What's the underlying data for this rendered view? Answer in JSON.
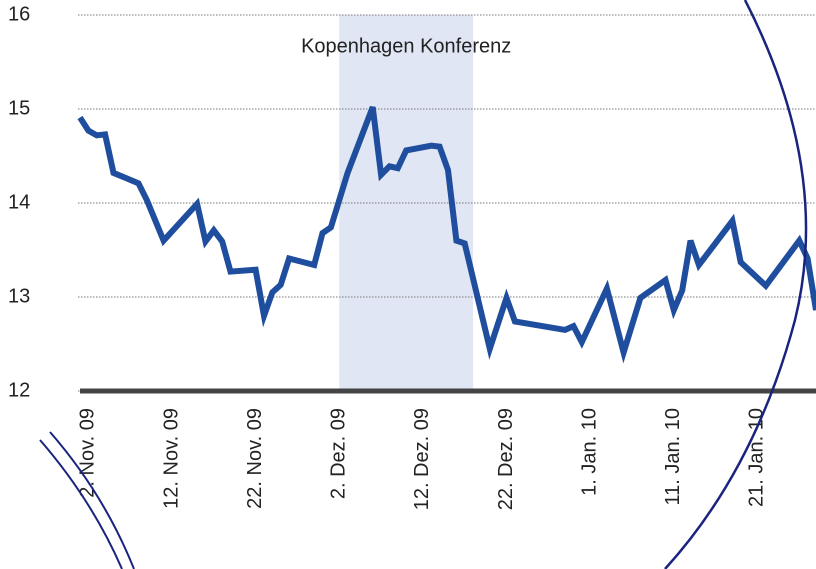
{
  "chart_data": {
    "type": "line",
    "x": [
      "2009-11-01",
      "2009-11-02",
      "2009-11-03",
      "2009-11-04",
      "2009-11-05",
      "2009-11-08",
      "2009-11-09",
      "2009-11-11",
      "2009-11-15",
      "2009-11-16",
      "2009-11-17",
      "2009-11-18",
      "2009-11-19",
      "2009-11-22",
      "2009-11-23",
      "2009-11-24",
      "2009-11-25",
      "2009-11-26",
      "2009-11-29",
      "2009-11-30",
      "2009-12-01",
      "2009-12-03",
      "2009-12-06",
      "2009-12-07",
      "2009-12-08",
      "2009-12-09",
      "2009-12-10",
      "2009-12-13",
      "2009-12-14",
      "2009-12-15",
      "2009-12-16",
      "2009-12-17",
      "2009-12-20",
      "2009-12-22",
      "2009-12-23",
      "2009-12-29",
      "2009-12-30",
      "2009-12-31",
      "2010-01-03",
      "2010-01-05",
      "2010-01-07",
      "2010-01-10",
      "2010-01-11",
      "2010-01-12",
      "2010-01-13",
      "2010-01-14",
      "2010-01-18",
      "2010-01-19",
      "2010-01-22",
      "2010-01-26",
      "2010-01-27",
      "2010-01-28"
    ],
    "series": [
      {
        "color": "#1f4e9e",
        "values": [
          14.91,
          14.77,
          14.72,
          14.73,
          14.32,
          14.21,
          14.03,
          13.6,
          13.99,
          13.59,
          13.71,
          13.59,
          13.27,
          13.29,
          12.8,
          13.05,
          13.13,
          13.41,
          13.34,
          13.68,
          13.74,
          14.32,
          15.02,
          14.3,
          14.39,
          14.37,
          14.56,
          14.61,
          14.6,
          14.35,
          13.6,
          13.57,
          12.45,
          12.99,
          12.74,
          12.65,
          12.69,
          12.52,
          13.09,
          12.41,
          12.99,
          13.18,
          12.86,
          13.07,
          13.6,
          13.34,
          13.81,
          13.37,
          13.12,
          13.6,
          13.41,
          12.86
        ]
      }
    ],
    "xlim": [
      "2009-11-01",
      "2010-01-28"
    ],
    "xticks": [
      {
        "value": "2009-11-02",
        "label": "2. Nov. 09"
      },
      {
        "value": "2009-11-12",
        "label": "12. Nov. 09"
      },
      {
        "value": "2009-11-22",
        "label": "22. Nov. 09"
      },
      {
        "value": "2009-12-02",
        "label": "2. Dez. 09"
      },
      {
        "value": "2009-12-12",
        "label": "12. Dez. 09"
      },
      {
        "value": "2009-12-22",
        "label": "22. Dez. 09"
      },
      {
        "value": "2010-01-01",
        "label": "1. Jan. 10"
      },
      {
        "value": "2010-01-11",
        "label": "11. Jan. 10"
      },
      {
        "value": "2010-01-21",
        "label": "21. Jan. 10"
      }
    ],
    "ylim": [
      12,
      16
    ],
    "yticks": [
      12,
      13,
      14,
      15,
      16
    ],
    "grid": true,
    "annotations": [
      {
        "text": "Kopenhagen Konferenz",
        "x0": "2009-12-02",
        "x1": "2009-12-18",
        "color": "#e0e6f3"
      }
    ]
  }
}
